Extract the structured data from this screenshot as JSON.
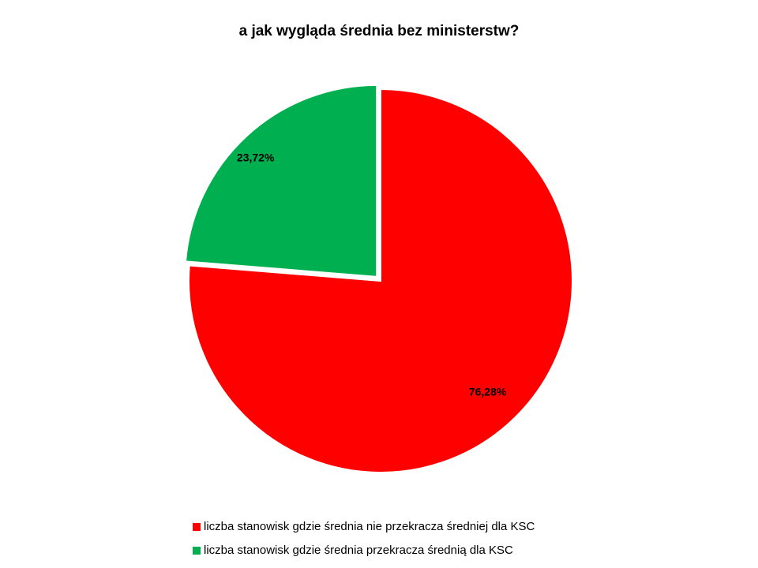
{
  "chart_data": {
    "type": "pie",
    "title": "a jak wygląda średnia bez ministerstw?",
    "categories": [
      "liczba stanowisk gdzie średnia nie przekracza średniej dla KSC",
      "liczba stanowisk gdzie średnia przekracza średnią dla KSC"
    ],
    "values": [
      76.28,
      23.72
    ],
    "value_labels": [
      "76,28%",
      "23,72%"
    ],
    "colors": [
      "#ff0000",
      "#00b050"
    ],
    "legend": "bottom"
  }
}
